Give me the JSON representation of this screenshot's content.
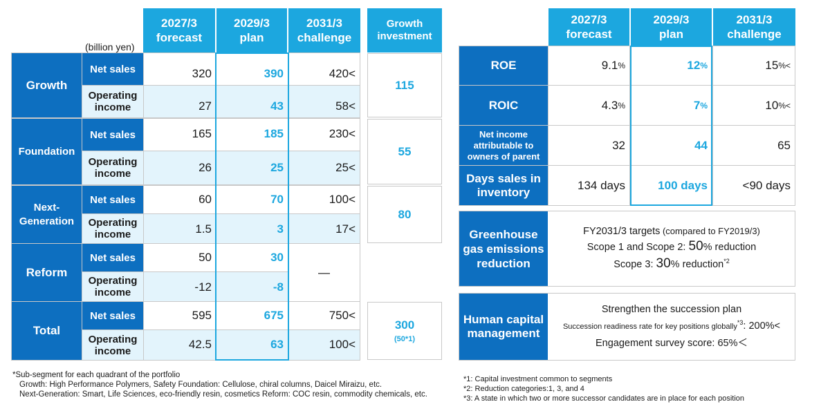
{
  "left_table": {
    "unit_label": "(billion yen)",
    "headers": {
      "col1": [
        "2027/3",
        "forecast"
      ],
      "col2": [
        "2029/3",
        "plan"
      ],
      "col3": [
        "2031/3",
        "challenge"
      ],
      "col4": [
        "Growth",
        "investment"
      ]
    },
    "segments": [
      {
        "name": "Growth",
        "rows": [
          {
            "label": "Net sales",
            "forecast": "320",
            "plan": "390",
            "challenge": "420<"
          },
          {
            "label": "Operating income",
            "forecast": "27",
            "plan": "43",
            "challenge": "58<"
          }
        ],
        "investment": "115"
      },
      {
        "name": "Foundation",
        "rows": [
          {
            "label": "Net sales",
            "forecast": "165",
            "plan": "185",
            "challenge": "230<"
          },
          {
            "label": "Operating income",
            "forecast": "26",
            "plan": "25",
            "challenge": "25<"
          }
        ],
        "investment": "55"
      },
      {
        "name": "Next-Generation",
        "name_lines": [
          "Next-",
          "Generation"
        ],
        "rows": [
          {
            "label": "Net sales",
            "forecast": "60",
            "plan": "70",
            "challenge": "100<"
          },
          {
            "label": "Operating income",
            "forecast": "1.5",
            "plan": "3",
            "challenge": "17<"
          }
        ],
        "investment": "80"
      },
      {
        "name": "Reform",
        "rows": [
          {
            "label": "Net sales",
            "forecast": "50",
            "plan": "30",
            "challenge": ""
          },
          {
            "label": "Operating income",
            "forecast": "-12",
            "plan": "-8",
            "challenge": ""
          }
        ],
        "challenge_merged": "—",
        "investment": ""
      },
      {
        "name": "Total",
        "rows": [
          {
            "label": "Net sales",
            "forecast": "595",
            "plan": "675",
            "challenge": "750<"
          },
          {
            "label": "Operating income",
            "forecast": "42.5",
            "plan": "63",
            "challenge": "100<"
          }
        ],
        "investment": "300",
        "investment_note": "(50*1)"
      }
    ],
    "op_income_lines": [
      "Operating",
      "income"
    ]
  },
  "right_table": {
    "headers": {
      "col1": [
        "2027/3",
        "forecast"
      ],
      "col2": [
        "2029/3",
        "plan"
      ],
      "col3": [
        "2031/3",
        "challenge"
      ]
    },
    "rows": [
      {
        "label": "ROE",
        "forecast": "9.1",
        "forecast_unit": "%",
        "plan": "12",
        "plan_unit": "%",
        "challenge": "15",
        "challenge_unit": "%<"
      },
      {
        "label": "ROIC",
        "forecast": "4.3",
        "forecast_unit": "%",
        "plan": "7",
        "plan_unit": "%",
        "challenge": "10",
        "challenge_unit": "%<"
      },
      {
        "label_lines": [
          "Net income",
          "attributable to",
          "owners of parent"
        ],
        "forecast": "32",
        "plan": "44",
        "challenge": "65"
      },
      {
        "label_lines": [
          "Days sales in",
          "inventory"
        ],
        "forecast": "134 days",
        "plan": "100 days",
        "challenge": "<90 days"
      }
    ],
    "ghg": {
      "label_lines": [
        "Greenhouse",
        "gas emissions",
        "reduction"
      ],
      "line1_a": "FY2031/3 targets",
      "line1_b": " (compared to FY2019/3)",
      "line2_a": "Scope 1 and Scope 2: ",
      "line2_b": "50",
      "line2_c": "% reduction",
      "line3_a": "Scope 3: ",
      "line3_b": "30",
      "line3_c": "% reduction",
      "line3_sup": "*2"
    },
    "hc": {
      "label_lines": [
        "Human capital",
        "management"
      ],
      "line1": "Strengthen the succession plan",
      "line2_a": "Succession readiness rate for key positions globally",
      "line2_sup": "*3",
      "line2_b": ": 200%<",
      "line3": "Engagement survey score: 65%＜"
    }
  },
  "notes_left": [
    "*Sub-segment for each quadrant of the portfolio",
    "Growth: High Performance Polymers, Safety     Foundation: Cellulose, chiral columns, Daicel Miraizu, etc.",
    "Next-Generation: Smart, Life Sciences, eco-friendly resin, cosmetics     Reform: COC resin, commodity chemicals, etc."
  ],
  "notes_right": [
    "*1: Capital investment common to segments",
    "*2: Reduction categories:1, 3, and 4",
    "*3: A state in which two or more successor candidates are in place for each position"
  ],
  "colors": {
    "header": "#1ca7df",
    "segment": "#0d6fc0",
    "light_row": "#e3f4fc",
    "plan_text": "#1ca7df"
  }
}
